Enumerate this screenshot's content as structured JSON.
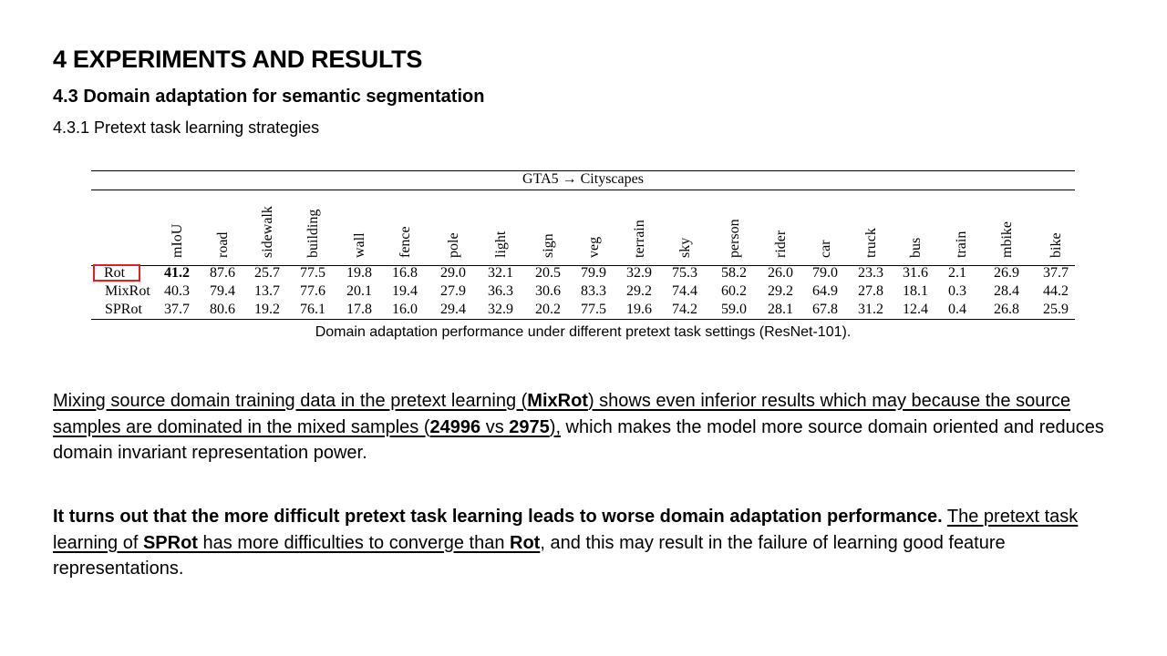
{
  "heading": "4 EXPERIMENTS AND RESULTS",
  "subheading": "4.3 Domain adaptation for semantic segmentation",
  "subsubheading": "4.3.1 Pretext task learning strategies",
  "table": {
    "title": "GTA5 → Cityscapes",
    "columns": [
      "mIoU",
      "road",
      "sidewalk",
      "building",
      "wall",
      "fence",
      "pole",
      "light",
      "sign",
      "veg",
      "terrain",
      "sky",
      "person",
      "rider",
      "car",
      "truck",
      "bus",
      "train",
      "mbike",
      "bike"
    ],
    "rows": [
      {
        "label": "Rot",
        "values": [
          "41.2",
          "87.6",
          "25.7",
          "77.5",
          "19.8",
          "16.8",
          "29.0",
          "32.1",
          "20.5",
          "79.9",
          "32.9",
          "75.3",
          "58.2",
          "26.0",
          "79.0",
          "23.3",
          "31.6",
          "2.1",
          "26.9",
          "37.7"
        ],
        "highlight_first": true
      },
      {
        "label": "MixRot",
        "values": [
          "40.3",
          "79.4",
          "13.7",
          "77.6",
          "20.1",
          "19.4",
          "27.9",
          "36.3",
          "30.6",
          "83.3",
          "29.2",
          "74.4",
          "60.2",
          "29.2",
          "64.9",
          "27.8",
          "18.1",
          "0.3",
          "28.4",
          "44.2"
        ]
      },
      {
        "label": "SPRot",
        "values": [
          "37.7",
          "80.6",
          "19.2",
          "76.1",
          "17.8",
          "16.0",
          "29.4",
          "32.9",
          "20.2",
          "77.5",
          "19.6",
          "74.2",
          "59.0",
          "28.1",
          "67.8",
          "31.2",
          "12.4",
          "0.4",
          "26.8",
          "25.9"
        ]
      }
    ],
    "caption": "Domain adaptation performance under different pretext task settings (ResNet-101).",
    "highlight_color": "#e02020"
  },
  "paragraph1": {
    "s1": "Mixing source domain training data in the pretext learning (",
    "s2": "MixRot",
    "s3": ") shows even inferior results which may because the source samples are dominated in the mixed samples (",
    "s4": "24996",
    "s5": " vs ",
    "s6": "2975",
    "s7": "),",
    "s8": " which makes the model more source domain oriented and reduces domain invariant representation power."
  },
  "paragraph2": {
    "s1": "It turns out that the more difficult pretext task learning leads to worse domain adaptation performance.",
    "s2": " ",
    "s3": "The pretext task learning of ",
    "s4": "SPRot",
    "s5": " has more difficulties to converge than ",
    "s6": "Rot",
    "s7": ", and this may result in the failure of learning good feature representations."
  }
}
